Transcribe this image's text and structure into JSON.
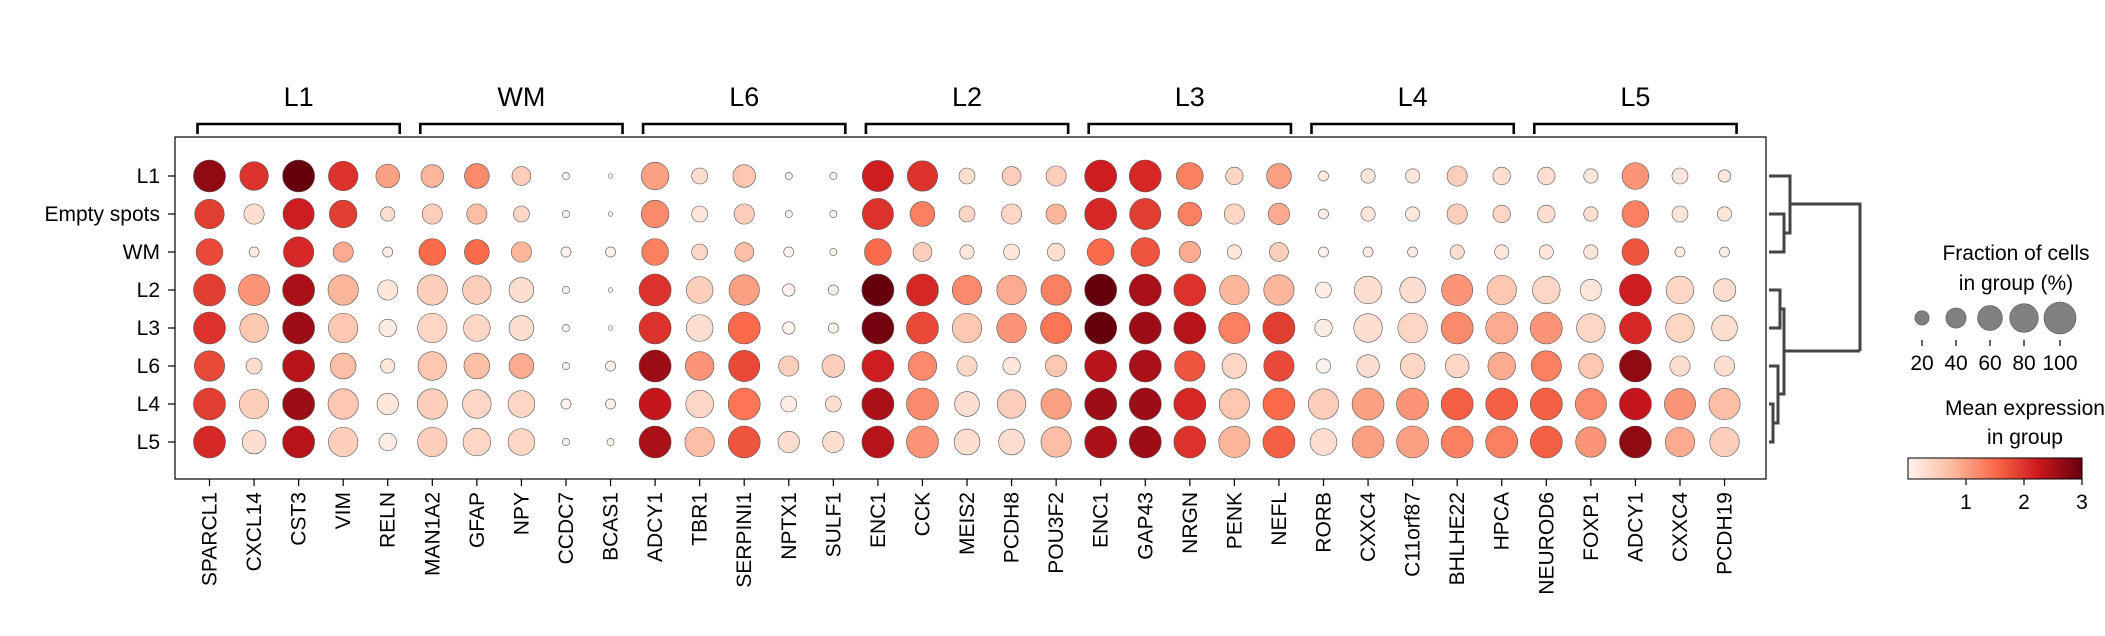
{
  "chart_data": {
    "type": "dotplot",
    "x_groups": [
      {
        "label": "L1",
        "genes": [
          "SPARCL1",
          "CXCL14",
          "CST3",
          "VIM",
          "RELN"
        ]
      },
      {
        "label": "WM",
        "genes": [
          "MAN1A2",
          "GFAP",
          "NPY",
          "CCDC7",
          "BCAS1"
        ]
      },
      {
        "label": "L6",
        "genes": [
          "ADCY1",
          "TBR1",
          "SERPINI1",
          "NPTX1",
          "SULF1"
        ]
      },
      {
        "label": "L2",
        "genes": [
          "ENC1",
          "CCK",
          "MEIS2",
          "PCDH8",
          "POU3F2"
        ]
      },
      {
        "label": "L3",
        "genes": [
          "ENC1",
          "GAP43",
          "NRGN",
          "PENK",
          "NEFL"
        ]
      },
      {
        "label": "L4",
        "genes": [
          "RORB",
          "CXXC4",
          "C11orf87",
          "BHLHE22",
          "HPCA"
        ]
      },
      {
        "label": "L5",
        "genes": [
          "NEUROD6",
          "FOXP1",
          "ADCY1",
          "CXXC4",
          "PCDH19"
        ]
      }
    ],
    "rows": [
      "L1",
      "Empty spots",
      "WM",
      "L2",
      "L3",
      "L6",
      "L4",
      "L5"
    ],
    "fraction_pct": [
      [
        100,
        80,
        100,
        85,
        55,
        50,
        60,
        35,
        5,
        2,
        75,
        25,
        50,
        5,
        5,
        95,
        90,
        25,
        35,
        40,
        100,
        100,
        70,
        30,
        60,
        10,
        20,
        20,
        40,
        30,
        30,
        20,
        70,
        25,
        15
      ],
      [
        85,
        40,
        95,
        75,
        20,
        40,
        40,
        25,
        5,
        2,
        75,
        25,
        40,
        5,
        5,
        95,
        60,
        25,
        40,
        40,
        100,
        95,
        55,
        40,
        45,
        10,
        20,
        20,
        40,
        30,
        30,
        20,
        70,
        25,
        20
      ],
      [
        70,
        10,
        90,
        40,
        10,
        70,
        60,
        40,
        10,
        10,
        70,
        25,
        35,
        10,
        5,
        70,
        35,
        20,
        25,
        30,
        70,
        80,
        45,
        20,
        35,
        10,
        10,
        10,
        20,
        20,
        20,
        20,
        70,
        10,
        10
      ],
      [
        100,
        95,
        100,
        90,
        40,
        90,
        80,
        60,
        5,
        2,
        100,
        70,
        90,
        15,
        10,
        100,
        100,
        85,
        85,
        90,
        100,
        100,
        100,
        85,
        90,
        25,
        75,
        65,
        95,
        85,
        75,
        45,
        100,
        75,
        50
      ],
      [
        100,
        80,
        100,
        85,
        30,
        85,
        70,
        60,
        5,
        2,
        100,
        70,
        100,
        15,
        10,
        100,
        100,
        85,
        85,
        95,
        100,
        100,
        100,
        95,
        100,
        30,
        80,
        85,
        100,
        100,
        100,
        80,
        100,
        80,
        65
      ],
      [
        90,
        25,
        100,
        65,
        20,
        80,
        65,
        60,
        5,
        10,
        100,
        80,
        95,
        40,
        50,
        100,
        80,
        40,
        30,
        45,
        100,
        100,
        90,
        60,
        90,
        20,
        50,
        60,
        55,
        75,
        90,
        60,
        100,
        40,
        40
      ],
      [
        100,
        85,
        100,
        90,
        45,
        90,
        80,
        70,
        10,
        10,
        100,
        75,
        100,
        25,
        25,
        100,
        100,
        60,
        80,
        90,
        100,
        100,
        100,
        90,
        100,
        90,
        100,
        100,
        100,
        100,
        100,
        95,
        100,
        95,
        95
      ],
      [
        100,
        55,
        100,
        85,
        30,
        85,
        75,
        70,
        5,
        5,
        100,
        85,
        100,
        45,
        45,
        100,
        100,
        65,
        65,
        90,
        100,
        100,
        100,
        95,
        100,
        70,
        100,
        100,
        100,
        100,
        100,
        90,
        100,
        85,
        85
      ]
    ],
    "mean_expression": [
      [
        2.7,
        2.0,
        3.0,
        2.0,
        1.0,
        0.8,
        1.2,
        0.5,
        0.05,
        0.05,
        1.0,
        0.3,
        0.6,
        0.05,
        0.05,
        2.2,
        2.0,
        0.3,
        0.5,
        0.5,
        2.2,
        2.1,
        1.3,
        0.4,
        1.0,
        0.1,
        0.2,
        0.2,
        0.5,
        0.3,
        0.3,
        0.2,
        1.1,
        0.2,
        0.2
      ],
      [
        1.9,
        0.3,
        2.2,
        1.9,
        0.3,
        0.5,
        0.7,
        0.4,
        0.05,
        0.05,
        1.2,
        0.2,
        0.5,
        0.05,
        0.05,
        2.0,
        1.3,
        0.4,
        0.4,
        0.8,
        2.1,
        1.9,
        1.3,
        0.4,
        0.9,
        0.1,
        0.2,
        0.2,
        0.5,
        0.4,
        0.3,
        0.3,
        1.3,
        0.2,
        0.2
      ],
      [
        1.8,
        0.1,
        2.1,
        0.9,
        0.1,
        1.5,
        1.5,
        0.8,
        0.05,
        0.05,
        1.3,
        0.4,
        0.7,
        0.05,
        0.05,
        1.5,
        0.5,
        0.2,
        0.2,
        0.3,
        1.5,
        1.7,
        0.9,
        0.2,
        0.5,
        0.05,
        0.1,
        0.1,
        0.3,
        0.2,
        0.2,
        0.2,
        1.7,
        0.1,
        0.1
      ],
      [
        1.9,
        1.1,
        2.5,
        0.8,
        0.2,
        0.5,
        0.5,
        0.3,
        0.02,
        0.02,
        2.0,
        0.5,
        1.0,
        0.05,
        0.05,
        3.0,
        2.1,
        1.2,
        0.9,
        1.3,
        3.0,
        2.5,
        2.0,
        0.8,
        0.8,
        0.1,
        0.3,
        0.3,
        1.1,
        0.6,
        0.4,
        0.2,
        2.2,
        0.4,
        0.3
      ],
      [
        2.0,
        0.6,
        2.6,
        0.6,
        0.1,
        0.4,
        0.4,
        0.3,
        0.02,
        0.02,
        2.0,
        0.3,
        1.5,
        0.05,
        0.05,
        2.9,
        1.8,
        0.6,
        1.1,
        1.4,
        3.0,
        2.6,
        2.4,
        1.3,
        1.9,
        0.1,
        0.3,
        0.4,
        1.2,
        0.9,
        1.1,
        0.4,
        2.1,
        0.4,
        0.3
      ],
      [
        1.8,
        0.3,
        2.4,
        0.7,
        0.2,
        0.6,
        0.7,
        0.9,
        0.02,
        0.05,
        2.6,
        1.1,
        1.8,
        0.5,
        0.5,
        2.2,
        1.2,
        0.4,
        0.2,
        0.6,
        2.4,
        2.5,
        1.7,
        0.4,
        1.8,
        0.05,
        0.3,
        0.4,
        0.4,
        0.9,
        1.3,
        0.6,
        2.7,
        0.3,
        0.3
      ],
      [
        1.9,
        0.5,
        2.6,
        0.6,
        0.2,
        0.5,
        0.4,
        0.4,
        0.02,
        0.05,
        2.3,
        0.4,
        1.4,
        0.1,
        0.3,
        2.5,
        1.2,
        0.3,
        0.5,
        1.0,
        2.6,
        2.6,
        2.1,
        0.6,
        1.5,
        0.5,
        1.0,
        1.1,
        1.6,
        1.6,
        1.6,
        1.2,
        2.3,
        1.1,
        0.7
      ],
      [
        2.1,
        0.3,
        2.4,
        0.5,
        0.1,
        0.5,
        0.4,
        0.4,
        0.02,
        0.02,
        2.5,
        0.7,
        1.7,
        0.3,
        0.3,
        2.4,
        1.1,
        0.3,
        0.3,
        0.7,
        2.5,
        2.6,
        2.0,
        0.8,
        1.6,
        0.3,
        1.0,
        1.0,
        1.3,
        1.3,
        1.6,
        1.1,
        2.7,
        0.9,
        0.5
      ]
    ],
    "size_legend": {
      "title_line1": "Fraction of cells",
      "title_line2": "in group (%)",
      "ticks": [
        "20",
        "40",
        "60",
        "80",
        "100"
      ],
      "values": [
        20,
        40,
        60,
        80,
        100
      ]
    },
    "color_legend": {
      "title_line1": "Mean expression",
      "title_line2": "in group",
      "ticks": [
        "1",
        "2",
        "3"
      ],
      "range": [
        0,
        3
      ],
      "colormap": "Reds"
    },
    "dendrogram": {
      "leaf_order": [
        "L1",
        "Empty spots",
        "WM",
        "L2",
        "L3",
        "L6",
        "L4",
        "L5"
      ]
    },
    "colors": {
      "frame": "#000000",
      "dot_edge": "#555555",
      "dendrogram": "#444444",
      "size_legend_dot": "#808080"
    }
  }
}
